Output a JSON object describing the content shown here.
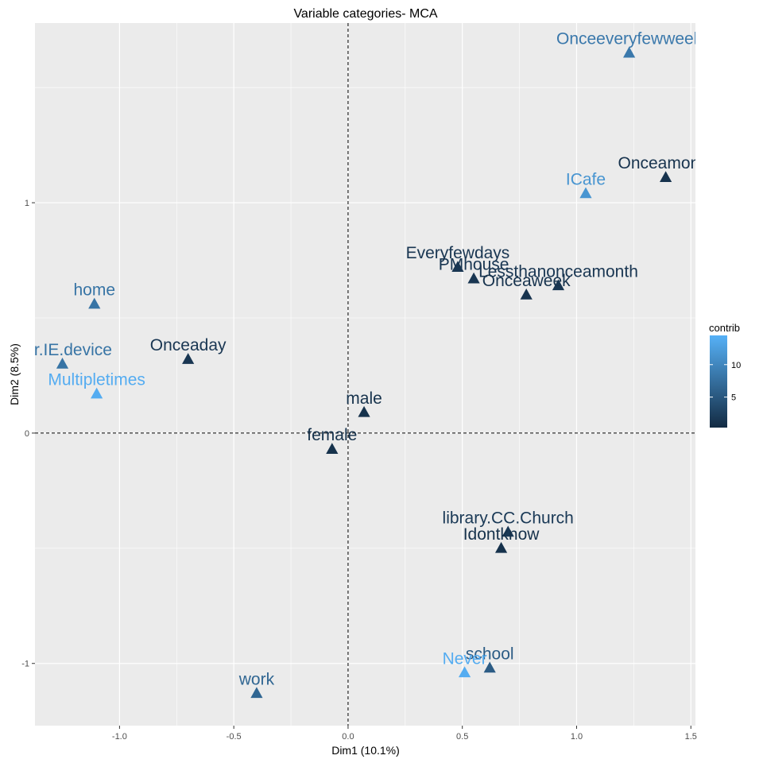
{
  "chart_data": {
    "type": "scatter",
    "title": "Variable categories- MCA",
    "xlabel": "Dim1 (10.1%)",
    "ylabel": "Dim2 (8.5%)",
    "xlim": [
      -1.37,
      1.52
    ],
    "ylim": [
      -1.27,
      1.78
    ],
    "x_ticks": [
      -1.0,
      -0.5,
      0.0,
      0.5,
      1.0,
      1.5
    ],
    "x_tick_labels": [
      "-1.0",
      "-0.5",
      "0.0",
      "0.5",
      "1.0",
      "1.5"
    ],
    "y_ticks": [
      -1,
      0,
      1
    ],
    "y_tick_labels": [
      "-1",
      "0",
      "1"
    ],
    "reference_lines": {
      "x": 0,
      "y": 0
    },
    "grid": true,
    "marker": "triangle",
    "color_scale": {
      "low": "#132B43",
      "high": "#56B1F7",
      "min": 0.3,
      "max": 14.5
    },
    "legend": {
      "title": "contrib",
      "ticks": [
        5,
        10
      ],
      "position": "right"
    },
    "points": [
      {
        "label": "Onceeveryfewweek",
        "x": 1.23,
        "y": 1.65,
        "contrib": 8.5
      },
      {
        "label": "Onceamonth",
        "x": 1.39,
        "y": 1.11,
        "contrib": 1.2
      },
      {
        "label": "ICafe",
        "x": 1.04,
        "y": 1.04,
        "contrib": 11.5
      },
      {
        "label": "Everyfewdays",
        "x": 0.48,
        "y": 0.72,
        "contrib": 1.5
      },
      {
        "label": "PMhouse",
        "x": 0.55,
        "y": 0.67,
        "contrib": 1.5
      },
      {
        "label": "Lessthanonceamonth",
        "x": 0.92,
        "y": 0.64,
        "contrib": 1.5
      },
      {
        "label": "Onceaweek",
        "x": 0.78,
        "y": 0.6,
        "contrib": 1.2
      },
      {
        "label": "home",
        "x": -1.11,
        "y": 0.56,
        "contrib": 8.0
      },
      {
        "label": "whr.IE.device",
        "x": -1.25,
        "y": 0.3,
        "contrib": 8.0
      },
      {
        "label": "Onceaday",
        "x": -0.7,
        "y": 0.32,
        "contrib": 1.5
      },
      {
        "label": "Multipletimes",
        "x": -1.1,
        "y": 0.17,
        "contrib": 14.0
      },
      {
        "label": "male",
        "x": 0.07,
        "y": 0.09,
        "contrib": 1.0
      },
      {
        "label": "female",
        "x": -0.07,
        "y": -0.07,
        "contrib": 1.0
      },
      {
        "label": "library.CC.Church",
        "x": 0.7,
        "y": -0.43,
        "contrib": 1.8
      },
      {
        "label": "Idontknow",
        "x": 0.67,
        "y": -0.5,
        "contrib": 1.0
      },
      {
        "label": "school",
        "x": 0.62,
        "y": -1.02,
        "contrib": 5.5
      },
      {
        "label": "Never",
        "x": 0.51,
        "y": -1.04,
        "contrib": 14.0
      },
      {
        "label": "work",
        "x": -0.4,
        "y": -1.13,
        "contrib": 6.5
      }
    ]
  }
}
